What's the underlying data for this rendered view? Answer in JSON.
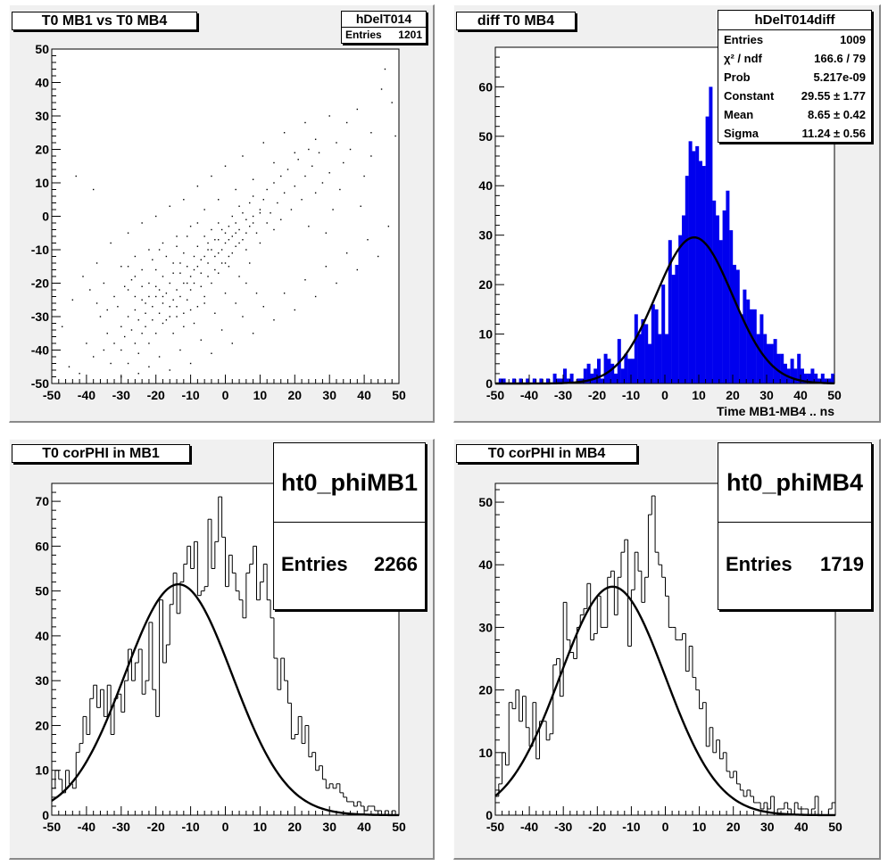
{
  "colors": {
    "pad": "#f0f0f0",
    "frame": "#ffffff",
    "hist_fill": "#0000ee",
    "line": "#000000"
  },
  "chart_data": [
    {
      "type": "scatter",
      "title": "T0 MB1 vs T0 MB4",
      "stats": {
        "name": "hDelT014",
        "rows": [
          {
            "label": "Entries",
            "value": "1201"
          }
        ]
      },
      "xlim": [
        -50,
        50
      ],
      "ylim": [
        -50,
        50
      ],
      "xticks": [
        "-50",
        "-40",
        "-30",
        "-20",
        "-10",
        "0",
        "10",
        "20",
        "30",
        "40",
        "50"
      ],
      "yticks": [
        "-50",
        "-40",
        "-30",
        "-20",
        "-10",
        "0",
        "10",
        "20",
        "30",
        "40",
        "50"
      ],
      "entries": 1201,
      "points": [
        [
          -45,
          -45
        ],
        [
          -42,
          -47
        ],
        [
          -40,
          -38
        ],
        [
          -38,
          -42
        ],
        [
          -36,
          -30
        ],
        [
          -35,
          -40
        ],
        [
          -34,
          -35
        ],
        [
          -33,
          -44
        ],
        [
          -32,
          -38
        ],
        [
          -31,
          -27
        ],
        [
          -30,
          -33
        ],
        [
          -30,
          -40
        ],
        [
          -29,
          -36
        ],
        [
          -28,
          -30
        ],
        [
          -28,
          -22
        ],
        [
          -27,
          -34
        ],
        [
          -26,
          -38
        ],
        [
          -26,
          -28
        ],
        [
          -25,
          -31
        ],
        [
          -25,
          -41
        ],
        [
          -24,
          -25
        ],
        [
          -24,
          -35
        ],
        [
          -23,
          -29
        ],
        [
          -23,
          -33
        ],
        [
          -22,
          -20
        ],
        [
          -22,
          -38
        ],
        [
          -21,
          -27
        ],
        [
          -21,
          -31
        ],
        [
          -20,
          -24
        ],
        [
          -20,
          -35
        ],
        [
          -19,
          -22
        ],
        [
          -19,
          -29
        ],
        [
          -18,
          -26
        ],
        [
          -18,
          -18
        ],
        [
          -17,
          -31
        ],
        [
          -17,
          -23
        ],
        [
          -16,
          -27
        ],
        [
          -16,
          -20
        ],
        [
          -15,
          -14
        ],
        [
          -15,
          -25
        ],
        [
          -14,
          -22
        ],
        [
          -14,
          -30
        ],
        [
          -13,
          -17
        ],
        [
          -13,
          -24
        ],
        [
          -12,
          -20
        ],
        [
          -12,
          -11
        ],
        [
          -11,
          -25
        ],
        [
          -11,
          -15
        ],
        [
          -10,
          -18
        ],
        [
          -10,
          -22
        ],
        [
          -9,
          -12
        ],
        [
          -9,
          -20
        ],
        [
          -8,
          -15
        ],
        [
          -8,
          -9
        ],
        [
          -7,
          -17
        ],
        [
          -7,
          -21
        ],
        [
          -6,
          -12
        ],
        [
          -6,
          -6
        ],
        [
          -5,
          -14
        ],
        [
          -5,
          -18
        ],
        [
          -4,
          -10
        ],
        [
          -4,
          -4
        ],
        [
          -3,
          -12
        ],
        [
          -3,
          -16
        ],
        [
          -2,
          -7
        ],
        [
          -2,
          -2
        ],
        [
          -1,
          -10
        ],
        [
          -1,
          -14
        ],
        [
          0,
          -5
        ],
        [
          0,
          -8
        ],
        [
          1,
          -3
        ],
        [
          1,
          -12
        ],
        [
          2,
          -6
        ],
        [
          2,
          0
        ],
        [
          3,
          -9
        ],
        [
          3,
          -2
        ],
        [
          4,
          -4
        ],
        [
          4,
          3
        ],
        [
          5,
          -7
        ],
        [
          5,
          1
        ],
        [
          6,
          -1
        ],
        [
          6,
          -10
        ],
        [
          7,
          4
        ],
        [
          7,
          -3
        ],
        [
          8,
          0
        ],
        [
          8,
          6
        ],
        [
          9,
          -5
        ],
        [
          10,
          2
        ],
        [
          10,
          -8
        ],
        [
          11,
          5
        ],
        [
          12,
          -2
        ],
        [
          12,
          8
        ],
        [
          13,
          1
        ],
        [
          14,
          10
        ],
        [
          14,
          -4
        ],
        [
          15,
          4
        ],
        [
          16,
          12
        ],
        [
          16,
          -1
        ],
        [
          17,
          7
        ],
        [
          18,
          14
        ],
        [
          19,
          2
        ],
        [
          20,
          9
        ],
        [
          21,
          17
        ],
        [
          22,
          5
        ],
        [
          23,
          12
        ],
        [
          24,
          -3
        ],
        [
          25,
          15
        ],
        [
          26,
          7
        ],
        [
          27,
          19
        ],
        [
          28,
          10
        ],
        [
          30,
          13
        ],
        [
          32,
          22
        ],
        [
          34,
          16
        ],
        [
          35,
          28
        ],
        [
          38,
          32
        ],
        [
          40,
          12
        ],
        [
          42,
          25
        ],
        [
          45,
          38
        ],
        [
          48,
          34
        ],
        [
          -47,
          -33
        ],
        [
          -44,
          -25
        ],
        [
          -41,
          -18
        ],
        [
          -39,
          -22
        ],
        [
          -37,
          -14
        ],
        [
          -35,
          -20
        ],
        [
          -43,
          12
        ],
        [
          -38,
          8
        ],
        [
          -33,
          -8
        ],
        [
          -30,
          -15
        ],
        [
          -28,
          -5
        ],
        [
          -26,
          -12
        ],
        [
          -24,
          -2
        ],
        [
          -22,
          -10
        ],
        [
          -20,
          0
        ],
        [
          -18,
          -8
        ],
        [
          -16,
          3
        ],
        [
          -14,
          -6
        ],
        [
          -12,
          5
        ],
        [
          -10,
          -3
        ],
        [
          -8,
          9
        ],
        [
          -6,
          2
        ],
        [
          -4,
          12
        ],
        [
          -2,
          5
        ],
        [
          0,
          15
        ],
        [
          3,
          8
        ],
        [
          5,
          18
        ],
        [
          8,
          11
        ],
        [
          11,
          22
        ],
        [
          14,
          16
        ],
        [
          17,
          25
        ],
        [
          20,
          19
        ],
        [
          23,
          28
        ],
        [
          26,
          23
        ],
        [
          -30,
          -48
        ],
        [
          -28,
          -44
        ],
        [
          -25,
          -47
        ],
        [
          -22,
          -45
        ],
        [
          -19,
          -42
        ],
        [
          -16,
          -46
        ],
        [
          -13,
          -40
        ],
        [
          -10,
          -44
        ],
        [
          -7,
          -37
        ],
        [
          -4,
          -41
        ],
        [
          -1,
          -34
        ],
        [
          2,
          -38
        ],
        [
          5,
          -30
        ],
        [
          8,
          -35
        ],
        [
          11,
          -27
        ],
        [
          14,
          -31
        ],
        [
          17,
          -23
        ],
        [
          20,
          -28
        ],
        [
          23,
          -19
        ],
        [
          26,
          -24
        ],
        [
          29,
          -15
        ],
        [
          32,
          -20
        ],
        [
          35,
          -11
        ],
        [
          38,
          -16
        ],
        [
          41,
          -7
        ],
        [
          44,
          -12
        ],
        [
          47,
          -3
        ],
        [
          -18,
          -32
        ],
        [
          -15,
          -35
        ],
        [
          -12,
          -29
        ],
        [
          -9,
          -32
        ],
        [
          -6,
          -26
        ],
        [
          -3,
          -29
        ],
        [
          0,
          -23
        ],
        [
          3,
          -26
        ],
        [
          6,
          -20
        ],
        [
          9,
          -23
        ],
        [
          -20,
          -16
        ],
        [
          -17,
          -12
        ],
        [
          -14,
          -9
        ],
        [
          -11,
          -6
        ],
        [
          -8,
          -2
        ],
        [
          -5,
          -8
        ],
        [
          -2,
          -11
        ],
        [
          1,
          -15
        ],
        [
          4,
          -18
        ],
        [
          7,
          -14
        ],
        [
          -27,
          -19
        ],
        [
          -24,
          -16
        ],
        [
          -21,
          -13
        ],
        [
          -19,
          -10
        ],
        [
          -23,
          -26
        ],
        [
          -26,
          -24
        ],
        [
          -29,
          -21
        ],
        [
          -32,
          -24
        ],
        [
          -34,
          -28
        ],
        [
          -37,
          -26
        ],
        [
          -15,
          -17
        ],
        [
          -13,
          -14
        ],
        [
          -11,
          -20
        ],
        [
          -9,
          -16
        ],
        [
          -7,
          -13
        ],
        [
          -5,
          -10
        ],
        [
          -3,
          -7
        ],
        [
          -1,
          -4
        ],
        [
          1,
          -7
        ],
        [
          3,
          -5
        ],
        [
          -8,
          -27
        ],
        [
          -6,
          -24
        ],
        [
          -4,
          -20
        ],
        [
          -2,
          -17
        ],
        [
          0,
          -14
        ],
        [
          2,
          -11
        ],
        [
          4,
          -8
        ],
        [
          6,
          -5
        ],
        [
          8,
          -2
        ],
        [
          10,
          1
        ],
        [
          -16,
          -30
        ],
        [
          -14,
          -27
        ],
        [
          -12,
          -33
        ],
        [
          -10,
          -28
        ],
        [
          -18,
          -24
        ],
        [
          -20,
          -21
        ],
        [
          -22,
          -24
        ],
        [
          -24,
          -21
        ],
        [
          -26,
          -18
        ],
        [
          -28,
          -15
        ],
        [
          30,
          30
        ],
        [
          33,
          8
        ],
        [
          36,
          20
        ],
        [
          39,
          3
        ],
        [
          42,
          18
        ],
        [
          46,
          44
        ],
        [
          49,
          24
        ],
        [
          29,
          -5
        ],
        [
          31,
          2
        ],
        [
          24,
          20
        ]
      ]
    },
    {
      "type": "bar",
      "title": "diff T0 MB4",
      "stats": {
        "name": "hDelT014diff",
        "rows": [
          {
            "label": "Entries",
            "value": "1009"
          },
          {
            "label": "χ² / ndf",
            "value": "166.6 / 79"
          },
          {
            "label": "Prob",
            "value": "5.217e-09"
          },
          {
            "label": "Constant",
            "value": "29.55 ± 1.77"
          },
          {
            "label": "Mean",
            "value": "8.65 ± 0.42"
          },
          {
            "label": "Sigma",
            "value": "11.24 ± 0.56"
          }
        ]
      },
      "xlabel": "Time MB1-MB4  ..  ns",
      "xlim": [
        -50,
        50
      ],
      "ylim": [
        0,
        68
      ],
      "xticks": [
        "-50",
        "-40",
        "-30",
        "-20",
        "-10",
        "0",
        "10",
        "20",
        "30",
        "40",
        "50"
      ],
      "yticks": [
        "0",
        "10",
        "20",
        "30",
        "40",
        "50",
        "60"
      ],
      "bin_start": -50,
      "bin_width": 1,
      "values": [
        0,
        1,
        1,
        0,
        0,
        1,
        0,
        1,
        0,
        1,
        0,
        1,
        0,
        1,
        0,
        1,
        0,
        2,
        1,
        1,
        3,
        1,
        2,
        0,
        1,
        1,
        3,
        4,
        2,
        3,
        5,
        1,
        6,
        5,
        4,
        2,
        9,
        3,
        6,
        5,
        5,
        14,
        10,
        13,
        12,
        8,
        16,
        15,
        10,
        20,
        10,
        29,
        22,
        24,
        30,
        34,
        42,
        49,
        47,
        48,
        45,
        44,
        54,
        60,
        37,
        34,
        29,
        35,
        39,
        31,
        24,
        23,
        14,
        19,
        17,
        15,
        15,
        10,
        14,
        10,
        8,
        8,
        9,
        6,
        6,
        4,
        3,
        5,
        3,
        6,
        3,
        2,
        2,
        3,
        2,
        1,
        2,
        1,
        1,
        2
      ],
      "fit": {
        "constant": 29.55,
        "mean": 8.65,
        "sigma": 11.24
      }
    },
    {
      "type": "bar",
      "title": "T0 corPHI in MB1",
      "stats": {
        "name": "ht0_phiMB1",
        "entries_label": "Entries",
        "entries": "2266"
      },
      "xlim": [
        -50,
        50
      ],
      "ylim": [
        0,
        74
      ],
      "xticks": [
        "-50",
        "-40",
        "-30",
        "-20",
        "-10",
        "0",
        "10",
        "20",
        "30",
        "40",
        "50"
      ],
      "yticks": [
        "0",
        "10",
        "20",
        "30",
        "40",
        "50",
        "60",
        "70"
      ],
      "bin_start": -50,
      "bin_width": 1,
      "values": [
        6,
        10,
        8,
        5,
        10,
        7,
        6,
        14,
        16,
        22,
        18,
        26,
        29,
        24,
        28,
        22,
        29,
        18,
        26,
        27,
        23,
        30,
        37,
        30,
        34,
        37,
        27,
        30,
        43,
        28,
        22,
        48,
        34,
        38,
        47,
        54,
        45,
        52,
        56,
        60,
        55,
        61,
        49,
        50,
        51,
        66,
        55,
        61,
        71,
        62,
        51,
        58,
        54,
        50,
        48,
        44,
        54,
        56,
        60,
        48,
        52,
        56,
        48,
        44,
        35,
        28,
        35,
        30,
        25,
        17,
        18,
        22,
        16,
        20,
        13,
        14,
        10,
        11,
        8,
        6,
        7,
        6,
        7,
        5,
        4,
        3,
        3,
        2,
        3,
        2,
        1,
        2,
        2,
        1,
        1,
        0,
        1,
        0,
        1,
        0
      ],
      "fit": {
        "constant": 51.5,
        "mean": -13.5,
        "sigma": 15.5
      }
    },
    {
      "type": "bar",
      "title": "T0 corPHI in MB4",
      "stats": {
        "name": "ht0_phiMB4",
        "entries_label": "Entries",
        "entries": "1719"
      },
      "xlim": [
        -50,
        50
      ],
      "ylim": [
        0,
        53
      ],
      "xticks": [
        "-50",
        "-40",
        "-30",
        "-20",
        "-10",
        "0",
        "10",
        "20",
        "30",
        "40",
        "50"
      ],
      "yticks": [
        "0",
        "10",
        "20",
        "30",
        "40",
        "50"
      ],
      "bin_start": -50,
      "bin_width": 1,
      "values": [
        3,
        5,
        10,
        8,
        18,
        17,
        20,
        15,
        19,
        14,
        11,
        18,
        9,
        15,
        15,
        12,
        13,
        24,
        25,
        19,
        34,
        28,
        26,
        25,
        30,
        32,
        33,
        37,
        28,
        29,
        35,
        30,
        30,
        38,
        39,
        32,
        38,
        42,
        44,
        27,
        36,
        42,
        39,
        34,
        38,
        48,
        51,
        42,
        40,
        38,
        35,
        30,
        30,
        28,
        28,
        29,
        23,
        27,
        22,
        20,
        17,
        18,
        11,
        14,
        10,
        12,
        9,
        10,
        7,
        6,
        7,
        5,
        4,
        3,
        4,
        3,
        2,
        2,
        1,
        2,
        1,
        3,
        0,
        1,
        1,
        2,
        1,
        0,
        2,
        1,
        1,
        1,
        0,
        1,
        3,
        0,
        0,
        0,
        1,
        2
      ],
      "fit": {
        "constant": 36.5,
        "mean": -15.5,
        "sigma": 15.5
      }
    }
  ]
}
